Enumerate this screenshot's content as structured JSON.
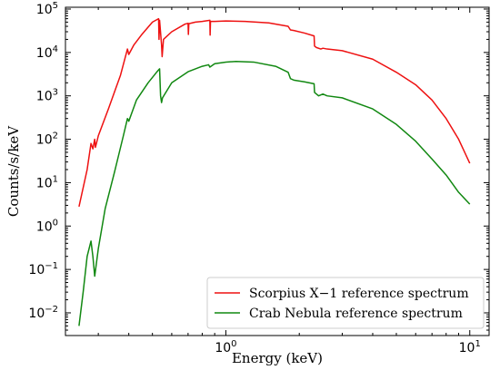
{
  "chart_data": {
    "type": "line",
    "title": "",
    "xlabel": "Energy (keV)",
    "ylabel": "Counts/s/keV",
    "x_scale": "log",
    "y_scale": "log",
    "xlim": [
      0.22,
      12
    ],
    "ylim": [
      0.003,
      110000
    ],
    "grid": false,
    "legend_position": "lower-right",
    "x_ticks": [
      {
        "value": 1,
        "base": "10",
        "exp": "0"
      },
      {
        "value": 10,
        "base": "10",
        "exp": "1"
      }
    ],
    "y_ticks": [
      {
        "value": 0.01,
        "base": "10",
        "exp": "−2"
      },
      {
        "value": 0.1,
        "base": "10",
        "exp": "−1"
      },
      {
        "value": 1,
        "base": "10",
        "exp": "0"
      },
      {
        "value": 10,
        "base": "10",
        "exp": "1"
      },
      {
        "value": 100,
        "base": "10",
        "exp": "2"
      },
      {
        "value": 1000,
        "base": "10",
        "exp": "3"
      },
      {
        "value": 10000,
        "base": "10",
        "exp": "4"
      },
      {
        "value": 100000,
        "base": "10",
        "exp": "5"
      }
    ],
    "series": [
      {
        "name": "Scorpius X−1 reference spectrum",
        "color": "#ee1111",
        "points": [
          [
            0.25,
            2.8
          ],
          [
            0.27,
            20
          ],
          [
            0.28,
            80
          ],
          [
            0.285,
            60
          ],
          [
            0.29,
            100
          ],
          [
            0.292,
            65
          ],
          [
            0.3,
            120
          ],
          [
            0.33,
            500
          ],
          [
            0.37,
            3000
          ],
          [
            0.395,
            12000
          ],
          [
            0.4,
            9000
          ],
          [
            0.42,
            15000
          ],
          [
            0.45,
            25000
          ],
          [
            0.5,
            50000
          ],
          [
            0.53,
            60000
          ],
          [
            0.532,
            20000
          ],
          [
            0.535,
            55000
          ],
          [
            0.545,
            15000
          ],
          [
            0.548,
            8000
          ],
          [
            0.555,
            20000
          ],
          [
            0.6,
            30000
          ],
          [
            0.68,
            45000
          ],
          [
            0.7,
            47000
          ],
          [
            0.702,
            26000
          ],
          [
            0.705,
            46000
          ],
          [
            0.75,
            50000
          ],
          [
            0.8,
            52000
          ],
          [
            0.86,
            55000
          ],
          [
            0.862,
            25000
          ],
          [
            0.865,
            52000
          ],
          [
            0.9,
            52000
          ],
          [
            1.0,
            53000
          ],
          [
            1.2,
            52000
          ],
          [
            1.5,
            48000
          ],
          [
            1.8,
            40000
          ],
          [
            1.84,
            33000
          ],
          [
            1.9,
            32000
          ],
          [
            2.1,
            28000
          ],
          [
            2.3,
            24000
          ],
          [
            2.31,
            14000
          ],
          [
            2.35,
            13000
          ],
          [
            2.45,
            12000
          ],
          [
            2.5,
            12500
          ],
          [
            2.6,
            12000
          ],
          [
            3.0,
            11000
          ],
          [
            4.0,
            7000
          ],
          [
            5.0,
            3500
          ],
          [
            6.0,
            1800
          ],
          [
            7.0,
            800
          ],
          [
            8.0,
            300
          ],
          [
            9.0,
            100
          ],
          [
            10.0,
            28
          ]
        ]
      },
      {
        "name": "Crab Nebula reference spectrum",
        "color": "#118811",
        "points": [
          [
            0.25,
            0.005
          ],
          [
            0.26,
            0.03
          ],
          [
            0.27,
            0.2
          ],
          [
            0.28,
            0.45
          ],
          [
            0.285,
            0.2
          ],
          [
            0.29,
            0.07
          ],
          [
            0.3,
            0.3
          ],
          [
            0.32,
            2.5
          ],
          [
            0.35,
            18
          ],
          [
            0.38,
            120
          ],
          [
            0.395,
            300
          ],
          [
            0.4,
            260
          ],
          [
            0.43,
            800
          ],
          [
            0.48,
            2000
          ],
          [
            0.52,
            3500
          ],
          [
            0.535,
            4200
          ],
          [
            0.54,
            1000
          ],
          [
            0.545,
            700
          ],
          [
            0.55,
            900
          ],
          [
            0.6,
            2000
          ],
          [
            0.7,
            3600
          ],
          [
            0.8,
            4800
          ],
          [
            0.85,
            5200
          ],
          [
            0.86,
            4600
          ],
          [
            0.9,
            5500
          ],
          [
            1.0,
            6000
          ],
          [
            1.1,
            6200
          ],
          [
            1.3,
            6000
          ],
          [
            1.6,
            4800
          ],
          [
            1.8,
            3500
          ],
          [
            1.84,
            2500
          ],
          [
            1.9,
            2300
          ],
          [
            2.1,
            2100
          ],
          [
            2.3,
            1900
          ],
          [
            2.31,
            1200
          ],
          [
            2.4,
            1000
          ],
          [
            2.5,
            1100
          ],
          [
            2.6,
            1000
          ],
          [
            3.0,
            900
          ],
          [
            4.0,
            500
          ],
          [
            5.0,
            220
          ],
          [
            6.0,
            90
          ],
          [
            7.0,
            35
          ],
          [
            8.0,
            15
          ],
          [
            9.0,
            6
          ],
          [
            10.0,
            3.2
          ]
        ]
      }
    ]
  }
}
